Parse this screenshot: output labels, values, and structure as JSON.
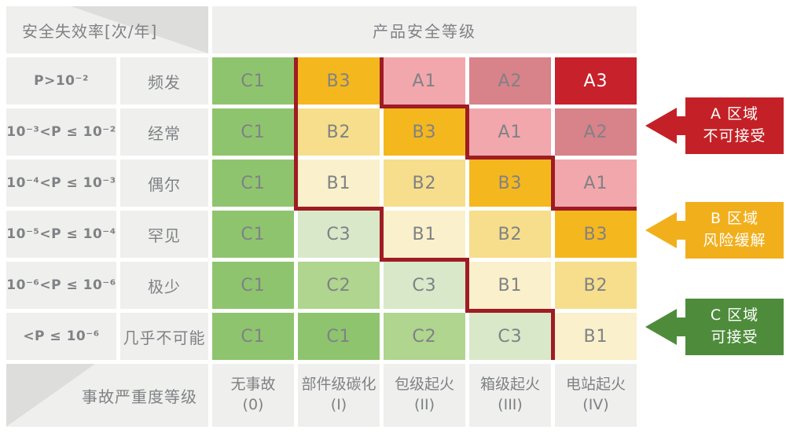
{
  "titles": {
    "failure_rate": "安全失效率[次/年]",
    "product_safety": "产品安全等级",
    "severity": "事故严重度等级"
  },
  "matrix": {
    "rows": [
      {
        "probability": "P>10⁻²",
        "frequency": "频发",
        "cells": [
          "C1",
          "B3",
          "A1",
          "A2",
          "A3"
        ]
      },
      {
        "probability": "10⁻³<P ≤ 10⁻²",
        "frequency": "经常",
        "cells": [
          "C1",
          "B2",
          "B3",
          "A1",
          "A2"
        ]
      },
      {
        "probability": "10⁻⁴<P ≤ 10⁻³",
        "frequency": "偶尔",
        "cells": [
          "C1",
          "B1",
          "B2",
          "B3",
          "A1"
        ]
      },
      {
        "probability": "10⁻⁵<P ≤ 10⁻⁴",
        "frequency": "罕见",
        "cells": [
          "C1",
          "C3",
          "B1",
          "B2",
          "B3"
        ]
      },
      {
        "probability": "10⁻⁶<P ≤ 10⁻⁶",
        "frequency": "极少",
        "cells": [
          "C1",
          "C2",
          "C3",
          "B1",
          "B2"
        ]
      },
      {
        "probability": "<P ≤ 10⁻⁶",
        "frequency": "几乎不可能",
        "cells": [
          "C1",
          "C1",
          "C2",
          "C3",
          "B1"
        ]
      }
    ]
  },
  "severity_levels": [
    {
      "name": "无事故",
      "grade": "(0)"
    },
    {
      "name": "部件级碳化",
      "grade": "(I)"
    },
    {
      "name": "包级起火",
      "grade": "(II)"
    },
    {
      "name": "箱级起火",
      "grade": "(III)"
    },
    {
      "name": "电站起火",
      "grade": "(IV)"
    }
  ],
  "zones": [
    {
      "code": "A",
      "line1": "A 区域",
      "line2": "不可接受",
      "color": "#C32127"
    },
    {
      "code": "B",
      "line1": "B 区域",
      "line2": "风险缓解",
      "color": "#F1AF1C"
    },
    {
      "code": "C",
      "line1": "C 区域",
      "line2": "可接受",
      "color": "#4E8C3C"
    }
  ],
  "colors": {
    "cells": {
      "C1": "#8FC46E",
      "C2": "#AFD58F",
      "C3": "#D8E8C9",
      "B1": "#FAF0CB",
      "B2": "#F6DE8C",
      "B3": "#F5B71E",
      "A1": "#F1A7AC",
      "A2": "#D8828A",
      "A3": "#C7212B"
    },
    "cell_text": "#7F8285",
    "cell_text_inverse": {
      "A3": "#FFFFFF"
    },
    "boundary": "#9E1C23",
    "header_bg": "#EFEFED",
    "corner_triangle": "#DDDDDB",
    "label_text": "#7F8285"
  },
  "chart_data": {
    "type": "heatmap",
    "title": "产品安全等级",
    "row_header": "安全失效率[次/年]",
    "col_header": "事故严重度等级",
    "row_labels": [
      {
        "probability": "P>10⁻²",
        "frequency": "频发"
      },
      {
        "probability": "10⁻³<P ≤ 10⁻²",
        "frequency": "经常"
      },
      {
        "probability": "10⁻⁴<P ≤ 10⁻³",
        "frequency": "偶尔"
      },
      {
        "probability": "10⁻⁵<P ≤ 10⁻⁴",
        "frequency": "罕见"
      },
      {
        "probability": "10⁻⁶<P ≤ 10⁻⁶",
        "frequency": "极少"
      },
      {
        "probability": "<P ≤ 10⁻⁶",
        "frequency": "几乎不可能"
      }
    ],
    "col_labels": [
      "无事故 (0)",
      "部件级碳化 (I)",
      "包级起火 (II)",
      "箱级起火 (III)",
      "电站起火 (IV)"
    ],
    "values": [
      [
        "C1",
        "B3",
        "A1",
        "A2",
        "A3"
      ],
      [
        "C1",
        "B2",
        "B3",
        "A1",
        "A2"
      ],
      [
        "C1",
        "B1",
        "B2",
        "B3",
        "A1"
      ],
      [
        "C1",
        "C3",
        "B1",
        "B2",
        "B3"
      ],
      [
        "C1",
        "C2",
        "C3",
        "B1",
        "B2"
      ],
      [
        "C1",
        "C1",
        "C2",
        "C3",
        "B1"
      ]
    ],
    "legend": [
      {
        "zone": "A",
        "meaning": "不可接受"
      },
      {
        "zone": "B",
        "meaning": "风险缓解"
      },
      {
        "zone": "C",
        "meaning": "可接受"
      }
    ],
    "legend_position": "right"
  }
}
